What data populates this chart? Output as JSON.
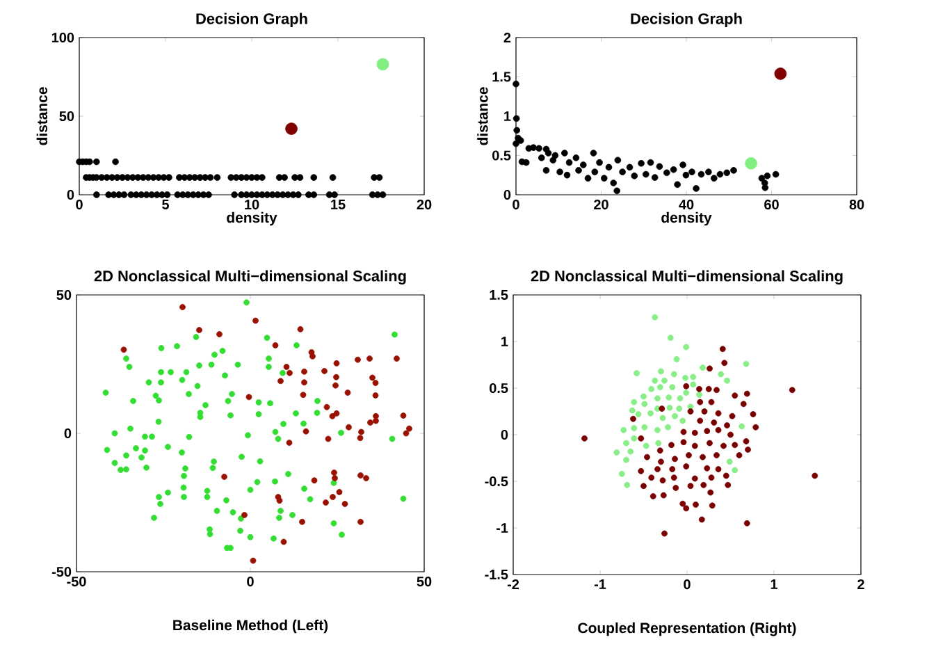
{
  "chart_data": [
    {
      "type": "scatter",
      "title": "Decision Graph",
      "xlabel": "density",
      "ylabel": "distance",
      "xlim": [
        0,
        20
      ],
      "ylim": [
        0,
        100
      ],
      "xticks": [
        0,
        5,
        10,
        15,
        20
      ],
      "yticks": [
        0,
        50,
        100
      ],
      "series": [
        {
          "color": "#000000",
          "x": [
            0,
            0.2,
            0.4,
            0.6,
            1.0,
            2.1,
            0.4,
            0.6,
            0.8,
            1.0,
            1.3,
            1.6,
            1.9,
            2.2,
            2.5,
            2.8,
            3.1,
            3.4,
            3.7,
            4.0,
            4.3,
            4.6,
            4.9,
            5.2,
            5.8,
            6.1,
            6.4,
            6.7,
            7.0,
            7.3,
            7.6,
            8.0,
            8.8,
            9.1,
            9.4,
            9.7,
            10.0,
            10.3,
            10.6,
            11.6,
            11.9,
            12.5,
            12.8,
            13.6,
            14.7,
            17.1,
            17.4,
            1.0,
            1.7,
            2.0,
            2.3,
            2.6,
            3.0,
            3.3,
            3.6,
            3.9,
            4.2,
            4.5,
            4.8,
            5.1,
            5.7,
            6.0,
            6.3,
            6.6,
            6.9,
            7.2,
            7.5,
            9.0,
            9.4,
            9.7,
            10.0,
            10.3,
            10.6,
            10.9,
            11.2,
            11.5,
            11.8,
            12.1,
            12.4,
            12.7,
            13.3,
            13.6,
            14.5,
            14.8,
            17.0,
            17.3,
            17.6
          ],
          "values": [
            21,
            21,
            21,
            21,
            21,
            21,
            11,
            11,
            11,
            11,
            11,
            11,
            11,
            11,
            11,
            11,
            11,
            11,
            11,
            11,
            11,
            11,
            11,
            11,
            11,
            11,
            11,
            11,
            11,
            11,
            11,
            11,
            11,
            11,
            11,
            11,
            11,
            11,
            11,
            11,
            11,
            11,
            11,
            11,
            11,
            11,
            11,
            0,
            0,
            0,
            0,
            0,
            0,
            0,
            0,
            0,
            0,
            0,
            0,
            0,
            0,
            0,
            0,
            0,
            0,
            0,
            0,
            0,
            0,
            0,
            0,
            0,
            0,
            0,
            0,
            0,
            0,
            0,
            0,
            0,
            0,
            0,
            0,
            0,
            0,
            0,
            0
          ]
        },
        {
          "color": "#800000",
          "x": [
            12.3
          ],
          "values": [
            42
          ]
        },
        {
          "color": "#80ee80",
          "x": [
            17.6
          ],
          "values": [
            83
          ]
        }
      ]
    },
    {
      "type": "scatter",
      "title": "Decision Graph",
      "xlabel": "density",
      "ylabel": "distance",
      "xlim": [
        0,
        80
      ],
      "ylim": [
        0,
        2
      ],
      "xticks": [
        0,
        20,
        40,
        60,
        80
      ],
      "yticks": [
        0,
        0.5,
        1,
        1.5,
        2
      ],
      "series": [
        {
          "color": "#000000",
          "x": [
            0,
            0.1,
            0.2,
            0.5,
            1.1,
            0,
            1.4,
            2.4,
            3,
            4.1,
            5.4,
            6,
            7.1,
            7.6,
            7.1,
            8.7,
            9.2,
            10.3,
            11.4,
            12,
            12.5,
            14.1,
            14.7,
            15.8,
            16.9,
            18.2,
            18.5,
            19.6,
            20.7,
            21.8,
            22.9,
            23.7,
            23.9,
            25,
            26.7,
            27.8,
            29.4,
            30.5,
            31.6,
            32.6,
            33.7,
            35.4,
            37,
            37.9,
            39.2,
            39.9,
            41.3,
            42.3,
            43.5,
            45.2,
            46.5,
            47.9,
            49.5,
            51.1,
            57.7,
            58.4,
            58.5,
            59,
            61
          ],
          "values": [
            1.41,
            0.97,
            0.82,
            0.72,
            0.69,
            0.65,
            0.42,
            0.41,
            0.59,
            0.6,
            0.59,
            0.47,
            0.58,
            0.53,
            0.31,
            0.44,
            0.5,
            0.29,
            0.53,
            0.25,
            0.41,
            0.47,
            0.31,
            0.38,
            0.21,
            0.53,
            0.29,
            0.41,
            0.21,
            0.35,
            0.15,
            0.05,
            0.44,
            0.29,
            0.35,
            0.24,
            0.4,
            0.26,
            0.41,
            0.22,
            0.36,
            0.28,
            0.32,
            0.13,
            0.38,
            0.25,
            0.29,
            0.08,
            0.26,
            0.29,
            0.21,
            0.26,
            0.28,
            0.31,
            0.21,
            0.15,
            0.09,
            0.24,
            0.26
          ]
        },
        {
          "color": "#800000",
          "x": [
            62.1
          ],
          "values": [
            1.54
          ]
        },
        {
          "color": "#80ee80",
          "x": [
            55.2
          ],
          "values": [
            0.4
          ]
        }
      ]
    },
    {
      "type": "scatter",
      "title": "2D Nonclassical Multi−dimensional Scaling",
      "xlabel": "Baseline Method (Left)",
      "xlim": [
        -50,
        50
      ],
      "ylim": [
        -50,
        50
      ],
      "xticks": [
        -50,
        0,
        50
      ],
      "yticks": [
        -50,
        0,
        50
      ],
      "series": [
        {
          "color": "#33dd33",
          "x": [
            -41.6,
            -39,
            -41.2,
            -39,
            -37.3,
            -35.7,
            -35.7,
            -35.7,
            -34.8,
            -34.5,
            -33.7,
            -32.9,
            -31.3,
            -30.3,
            -30.3,
            -29.9,
            -28.3,
            -29.2,
            -27.7,
            -27.2,
            -26.4,
            -26.3,
            -25.9,
            -25.6,
            -25.7,
            -25.7,
            -26.3,
            -23.7,
            -23.7,
            -22.9,
            -21.1,
            -19.7,
            -19.6,
            -19.2,
            -19.1,
            -18.7,
            -19.1,
            -18.4,
            -17.7,
            -17.6,
            -15.6,
            -15.2,
            -14.7,
            -14.4,
            -14.4,
            -12.9,
            -12.4,
            -12.4,
            -11.7,
            -11.6,
            -11.2,
            -10.8,
            -10.5,
            -10.3,
            -9.6,
            -8,
            -7.3,
            -6.9,
            -6.7,
            -5.7,
            -6.4,
            -5.3,
            -5.7,
            -5,
            -3.6,
            -2.9,
            -2.7,
            -2.5,
            -1.1,
            -0.7,
            0,
            0,
            2,
            2.4,
            2.4,
            2.8,
            4.8,
            5.3,
            5.3,
            5.7,
            6.7,
            7.1,
            7.2,
            8,
            8.3,
            8.7,
            9.3,
            9.5,
            10.9,
            12.1,
            13.3,
            13.1,
            15.3,
            15.5,
            17.2,
            19.3,
            19.2,
            24,
            24,
            26.1,
            26.3,
            40.8,
            41.5,
            44
          ],
          "values": [
            14.7,
            0,
            -6,
            -10.7,
            -13.2,
            -13,
            -8,
            27,
            24,
            1.7,
            11.7,
            -5.4,
            -8.7,
            -6.2,
            -1.2,
            -12.4,
            -1.2,
            18.4,
            -30.5,
            13.6,
            4.2,
            -23,
            -25.5,
            30.8,
            22.1,
            18.4,
            11.9,
            -4.9,
            -21.4,
            22.1,
            31.5,
            -6.9,
            19.3,
            -19.6,
            -15.4,
            -12.7,
            -23,
            22.1,
            14.2,
            -1.3,
            34.8,
            17.1,
            24.5,
            5.9,
            7.4,
            10.2,
            -20.8,
            -23,
            -34.7,
            -36.4,
            24.8,
            -12.5,
            -10.2,
            28.4,
            -28,
            29.8,
            20.9,
            -24.2,
            -41.4,
            -41.4,
            11.7,
            14.2,
            6.5,
            -28.5,
            24.8,
            -35.2,
            -30.8,
            -8.5,
            47.3,
            -0.7,
            -20.4,
            -37.5,
            -17.6,
            11.2,
            6.9,
            -10.1,
            34.5,
            27,
            24,
            10.9,
            -38,
            -17.4,
            0.5,
            -2,
            -30.5,
            -28,
            21.8,
            3.4,
            -14.7,
            -29.5,
            31.8,
            7.2,
            3.5,
            -20,
            -23.8,
            11.7,
            7.4,
            -17.9,
            -32.5,
            0.2,
            -36.6,
            -2,
            35.7,
            -23.6
          ]
        },
        {
          "color": "#991100",
          "x": [
            -19.5,
            -36.4,
            -14.7,
            -8.9,
            -7.5,
            -1.7,
            -0.4,
            0.8,
            1.5,
            7.2,
            8.7,
            8,
            8.4,
            9.6,
            10.4,
            11.3,
            11.2,
            14.4,
            15.2,
            15.5,
            15.5,
            16,
            14.9,
            17.6,
            17.9,
            18.4,
            21.3,
            22,
            22.4,
            21.7,
            23.6,
            23.7,
            24.1,
            24.3,
            24.5,
            24.7,
            24.8,
            24.8,
            25.6,
            27.2,
            28,
            28.3,
            30.9,
            31.6,
            31.9,
            31.7,
            31.7,
            33.3,
            34.3,
            34.5,
            35.1,
            36,
            36,
            36.1,
            36.1,
            42.1,
            44,
            44.8,
            45.7
          ],
          "values": [
            45.6,
            30.2,
            37.3,
            35.8,
            -15.7,
            -29.5,
            13.1,
            -46,
            40.7,
            31.8,
            18.9,
            -23,
            -24.3,
            -39.2,
            24,
            21.8,
            -3.4,
            37.6,
            13.9,
            22.3,
            18.4,
            0.7,
            -32,
            29.3,
            27.8,
            -17,
            22.5,
            9.5,
            -2,
            -25,
            6.2,
            -23,
            -14.2,
            -16.2,
            17.3,
            20.3,
            25.3,
            7.2,
            -21.2,
            -25.5,
            14.7,
            2.2,
            26.6,
            -1.7,
            0.5,
            -15.2,
            -32,
            -16.2,
            27,
            3.9,
            20.1,
            18.2,
            13.7,
            6.2,
            4.5,
            27,
            6.4,
            0,
            1.7
          ]
        }
      ]
    },
    {
      "type": "scatter",
      "title": "2D Nonclassical Multi−dimensional Scaling",
      "xlabel": "Coupled Representation (Right)",
      "xlim": [
        -2,
        2
      ],
      "ylim": [
        -1.5,
        1.5
      ],
      "xticks": [
        -2,
        -1,
        0,
        1,
        2
      ],
      "yticks": [
        -1.5,
        -1,
        -0.5,
        0,
        0.5,
        1,
        1.5
      ],
      "series": [
        {
          "color": "#88ee88",
          "x": [
            -0.37,
            -0.19,
            -0.01,
            -0.12,
            0.18,
            0.68,
            0.39,
            0.46,
            -0.58,
            -0.3,
            -0.15,
            -0.02,
            0.07,
            -0.37,
            -0.26,
            -0.41,
            -0.31,
            -0.17,
            0.07,
            -0.5,
            -0.34,
            -0.21,
            -0.08,
            -0.01,
            -0.61,
            -0.49,
            -0.34,
            -0.2,
            -0.09,
            0.04,
            -0.63,
            -0.56,
            -0.42,
            -0.28,
            -0.14,
            -0.05,
            -0.73,
            -0.61,
            -0.49,
            -0.34,
            -0.22,
            -0.7,
            -0.61,
            -0.47,
            -0.33,
            -0.81,
            -0.65,
            -0.7,
            -0.75,
            -0.69,
            0.63,
            0.55,
            0.49,
            0.14
          ],
          "values": [
            1.26,
            1.04,
            0.94,
            0.81,
            0.72,
            0.76,
            0.65,
            0.58,
            0.66,
            0.68,
            0.65,
            0.61,
            0.62,
            0.58,
            0.58,
            0.49,
            0.51,
            0.51,
            0.54,
            0.41,
            0.39,
            0.4,
            0.39,
            0.45,
            0.35,
            0.33,
            0.28,
            0.29,
            0.28,
            0.3,
            0.26,
            0.22,
            0.23,
            0.18,
            0.2,
            0.15,
            0.05,
            0.07,
            0.08,
            0.05,
            0.08,
            -0.09,
            -0.04,
            -0.12,
            -0.09,
            -0.19,
            -0.18,
            -0.27,
            -0.42,
            -0.54,
            0.09,
            -0.38,
            -0.29,
            0.43
          ]
        },
        {
          "color": "#7a0000",
          "x": [
            0.41,
            0.43,
            0.26,
            0.14,
            0.25,
            0.34,
            -0.01,
            0.69,
            0.55,
            0.65,
            0.76,
            0.79,
            1.21,
            -1.18,
            1.47,
            0.69,
            -0.26,
            0.17,
            -0.01,
            0.29,
            -0.05,
            0.1,
            -0.39,
            -0.27,
            0.27,
            -0.5,
            -0.13,
            0.04,
            0.19,
            0.47,
            -0.41,
            -0.28,
            -0.15,
            0.09,
            0.28,
            0.45,
            -0.53,
            -0.34,
            -0.17,
            -0.01,
            0.23,
            0.36,
            -0.46,
            -0.3,
            -0.14,
            0.02,
            0.18,
            0.34,
            0.6,
            0.7,
            -0.53,
            -0.31,
            -0.18,
            -0.04,
            0.09,
            0.26,
            0.42,
            0.55,
            0.68,
            0.09,
            0.23,
            0.36,
            0.5,
            -0.04,
            0.15,
            0.31,
            0.46,
            0.04,
            0.2,
            0.36,
            0.52,
            -0.29,
            -0.62,
            0.15,
            0.28
          ],
          "values": [
            0.92,
            0.77,
            0.71,
            0.49,
            0.49,
            0.48,
            0.52,
            0.44,
            0.42,
            0.33,
            0.22,
            0.08,
            0.48,
            -0.04,
            -0.44,
            -0.95,
            -1.06,
            -0.91,
            -0.79,
            -0.76,
            -0.74,
            -0.75,
            -0.66,
            -0.65,
            -0.62,
            -0.55,
            -0.57,
            -0.55,
            -0.54,
            -0.54,
            -0.46,
            -0.49,
            -0.46,
            -0.47,
            -0.46,
            -0.44,
            -0.39,
            -0.37,
            -0.37,
            -0.34,
            -0.36,
            -0.37,
            -0.24,
            -0.29,
            -0.26,
            -0.22,
            -0.24,
            -0.22,
            -0.22,
            -0.16,
            -0.04,
            -0.17,
            -0.11,
            -0.08,
            -0.12,
            -0.09,
            -0.12,
            -0.11,
            -0.07,
            0.02,
            0.04,
            0.05,
            0,
            0.03,
            0.15,
            0.13,
            0.1,
            0.25,
            0.25,
            0.23,
            0.2,
            0.28,
            0.17,
            0.35,
            0.35
          ]
        }
      ]
    }
  ]
}
